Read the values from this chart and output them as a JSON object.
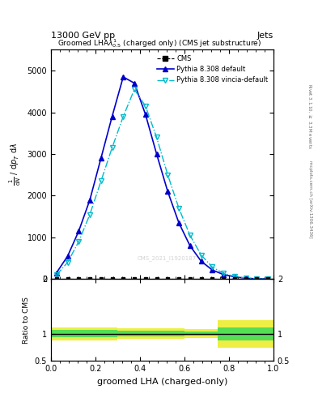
{
  "title_top": "13000 GeV pp",
  "title_top_right": "Jets",
  "plot_title": "Groomed LHA$\\lambda^1_{0.5}$ (charged only) (CMS jet substructure)",
  "xlabel": "groomed LHA (charged-only)",
  "ylabel_main_lines": [
    "mathrm d$^2$N",
    "/ mathrm d$p_T$ mathrm d lambda"
  ],
  "ylabel_ratio": "Ratio to CMS",
  "right_label_top": "Rivet 3.1.10, $\\geq$ 3.3M events",
  "right_label_bottom": "mcplots.cern.ch [arXiv:1306.3436]",
  "watermark": "CMS_2021_I1920187",
  "x_data": [
    0.025,
    0.075,
    0.125,
    0.175,
    0.225,
    0.275,
    0.325,
    0.375,
    0.425,
    0.475,
    0.525,
    0.575,
    0.625,
    0.675,
    0.725,
    0.775,
    0.825,
    0.875,
    0.925,
    0.975
  ],
  "cms_data_y": [
    0,
    0,
    0,
    0,
    0,
    0,
    0,
    0,
    0,
    0,
    0,
    0,
    0,
    0,
    0,
    0,
    0,
    0,
    0,
    0
  ],
  "pythia_default": [
    150,
    550,
    1150,
    1900,
    2900,
    3900,
    4850,
    4700,
    3950,
    3000,
    2100,
    1350,
    800,
    430,
    220,
    110,
    55,
    22,
    8,
    2
  ],
  "pythia_vincia": [
    100,
    400,
    900,
    1550,
    2350,
    3150,
    3900,
    4550,
    4150,
    3400,
    2500,
    1700,
    1050,
    580,
    290,
    140,
    65,
    28,
    10,
    2
  ],
  "ratio_yellow_low": [
    0.88,
    0.88,
    0.88,
    0.88,
    0.88,
    0.88,
    0.9,
    0.9,
    0.9,
    0.9,
    0.9,
    0.9,
    0.92,
    0.92,
    0.92,
    0.75,
    0.75,
    0.75,
    0.75,
    0.75
  ],
  "ratio_yellow_high": [
    1.12,
    1.12,
    1.12,
    1.12,
    1.12,
    1.12,
    1.1,
    1.1,
    1.1,
    1.1,
    1.1,
    1.1,
    1.08,
    1.08,
    1.08,
    1.25,
    1.25,
    1.25,
    1.25,
    1.25
  ],
  "ratio_green_low": [
    0.93,
    0.93,
    0.93,
    0.93,
    0.93,
    0.93,
    0.95,
    0.95,
    0.95,
    0.95,
    0.95,
    0.95,
    0.96,
    0.96,
    0.96,
    0.88,
    0.88,
    0.88,
    0.88,
    0.88
  ],
  "ratio_green_high": [
    1.07,
    1.07,
    1.07,
    1.07,
    1.07,
    1.07,
    1.05,
    1.05,
    1.05,
    1.05,
    1.05,
    1.05,
    1.04,
    1.04,
    1.04,
    1.12,
    1.12,
    1.12,
    1.12,
    1.12
  ],
  "color_default": "#0000cc",
  "color_vincia": "#00bbcc",
  "ylim_main": [
    0,
    5500
  ],
  "ylim_ratio": [
    0.5,
    2.0
  ],
  "yticks_main": [
    0,
    1000,
    2000,
    3000,
    4000,
    5000
  ],
  "yticks_ratio": [
    0.5,
    1.0,
    2.0
  ],
  "ratio_ytick_labels": [
    "0.5",
    "1",
    "2"
  ]
}
